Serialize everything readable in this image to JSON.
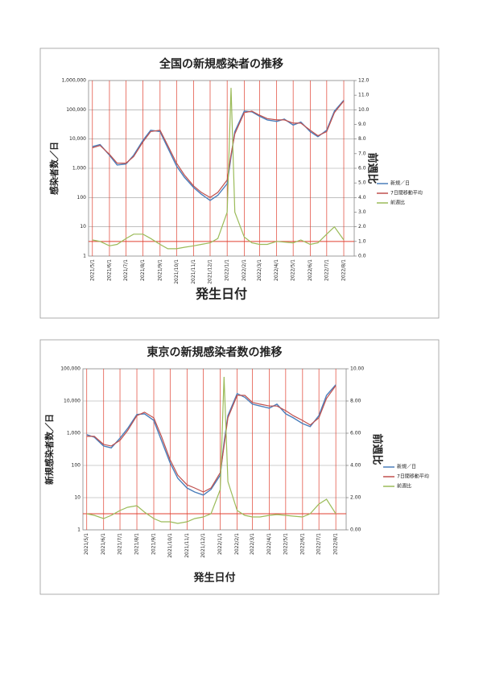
{
  "chart_data": [
    {
      "type": "line",
      "title": "全国の新規感染者の推移",
      "ylabel": "感染者数／日",
      "y2label": "前週比",
      "xlabel": "発生日付",
      "ylog": true,
      "x": [
        "2021/5/1",
        "2021/5/15",
        "2021/6/1",
        "2021/6/15",
        "2021/7/1",
        "2021/7/15",
        "2021/8/1",
        "2021/8/15",
        "2021/9/1",
        "2021/9/15",
        "2021/10/1",
        "2021/10/15",
        "2021/11/1",
        "2021/11/15",
        "2021/12/1",
        "2021/12/15",
        "2022/1/1",
        "2022/1/8",
        "2022/1/15",
        "2022/2/1",
        "2022/2/15",
        "2022/3/1",
        "2022/3/15",
        "2022/4/1",
        "2022/4/15",
        "2022/5/1",
        "2022/5/15",
        "2022/6/1",
        "2022/6/15",
        "2022/7/1",
        "2022/7/15",
        "2022/8/1"
      ],
      "xlim": [
        "2021/4/24",
        "2022/8/20"
      ],
      "xticks": [
        "2021/5/1",
        "2021/6/1",
        "2021/7/1",
        "2021/8/1",
        "2021/9/1",
        "2021/10/1",
        "2021/11/1",
        "2021/12/1",
        "2022/1/1",
        "2022/2/1",
        "2022/3/1",
        "2022/4/1",
        "2022/5/1",
        "2022/6/1",
        "2022/7/1",
        "2022/8/1"
      ],
      "ylim": [
        1,
        1000000
      ],
      "yticks": [
        1,
        10,
        100,
        {
          "value": 1000,
          "label": "1,000"
        },
        {
          "value": 10000,
          "label": "10,000"
        },
        {
          "value": 100000,
          "label": "100,000"
        },
        {
          "value": 1000000,
          "label": "1,000,000"
        }
      ],
      "y2lim": [
        0,
        12
      ],
      "y2ticks": [
        {
          "value": 0,
          "label": "0.0"
        },
        {
          "value": 1,
          "label": "1.0"
        },
        {
          "value": 2,
          "label": "2.0"
        },
        {
          "value": 3,
          "label": "3.0"
        },
        {
          "value": 4,
          "label": "4.0"
        },
        {
          "value": 5,
          "label": "5.0"
        },
        {
          "value": 6,
          "label": "6.0"
        },
        {
          "value": 7,
          "label": "7.0"
        },
        {
          "value": 8,
          "label": "8.0"
        },
        {
          "value": 9,
          "label": "9.0"
        },
        {
          "value": 10,
          "label": "10.0"
        },
        {
          "value": 11,
          "label": "11.0"
        },
        {
          "value": 12,
          "label": "12.0"
        }
      ],
      "y2_ref": 1,
      "series": [
        {
          "name": "新規／日",
          "color": "#4a7ebb",
          "values": [
            5500,
            6500,
            2800,
            1300,
            1400,
            2800,
            9000,
            20000,
            18000,
            5000,
            1200,
            500,
            220,
            130,
            80,
            120,
            300,
            2500,
            18000,
            90000,
            85000,
            60000,
            45000,
            40000,
            48000,
            30000,
            38000,
            18000,
            12000,
            20000,
            90000,
            210000
          ]
        },
        {
          "name": "7日間移動平均",
          "color": "#c0504d",
          "values": [
            5000,
            6000,
            3000,
            1500,
            1500,
            2500,
            8000,
            18000,
            20000,
            6000,
            1500,
            600,
            250,
            150,
            100,
            150,
            400,
            3000,
            15000,
            80000,
            90000,
            65000,
            50000,
            45000,
            45000,
            35000,
            35000,
            20000,
            13000,
            18000,
            80000,
            200000
          ]
        },
        {
          "name": "前週比",
          "color": "#9bbb59",
          "axis": "y2",
          "values": [
            1.1,
            1.0,
            0.7,
            0.8,
            1.2,
            1.5,
            1.5,
            1.2,
            0.8,
            0.5,
            0.5,
            0.6,
            0.7,
            0.8,
            0.9,
            1.2,
            3.0,
            11.5,
            3.0,
            1.3,
            0.9,
            0.8,
            0.8,
            1.0,
            0.95,
            0.9,
            1.1,
            0.8,
            0.9,
            1.5,
            2.0,
            1.1
          ]
        }
      ]
    },
    {
      "type": "line",
      "title": "東京の新規感染者数の推移",
      "ylabel": "新規感染者数／日",
      "y2label": "前週比",
      "xlabel": "発生日付",
      "ylog": true,
      "x": [
        "2021/5/1",
        "2021/5/15",
        "2021/6/1",
        "2021/6/15",
        "2021/7/1",
        "2021/7/15",
        "2021/8/1",
        "2021/8/15",
        "2021/9/1",
        "2021/9/15",
        "2021/10/1",
        "2021/10/15",
        "2021/11/1",
        "2021/11/15",
        "2021/12/1",
        "2021/12/15",
        "2022/1/1",
        "2022/1/8",
        "2022/1/15",
        "2022/2/1",
        "2022/2/15",
        "2022/3/1",
        "2022/3/15",
        "2022/4/1",
        "2022/4/15",
        "2022/5/1",
        "2022/5/15",
        "2022/6/1",
        "2022/6/15",
        "2022/7/1",
        "2022/7/15",
        "2022/8/1"
      ],
      "xlim": [
        "2021/4/24",
        "2022/8/20"
      ],
      "xticks": [
        "2021/5/1",
        "2021/6/1",
        "2021/7/1",
        "2021/8/1",
        "2021/9/1",
        "2021/10/1",
        "2021/11/1",
        "2021/12/1",
        "2022/1/1",
        "2022/2/1",
        "2022/3/1",
        "2022/4/1",
        "2022/5/1",
        "2022/6/1",
        "2022/7/1",
        "2022/8/1"
      ],
      "ylim": [
        1,
        100000
      ],
      "yticks": [
        1,
        10,
        100,
        {
          "value": 1000,
          "label": "1,000"
        },
        {
          "value": 10000,
          "label": "10,000"
        },
        {
          "value": 100000,
          "label": "100,000"
        }
      ],
      "y2lim": [
        0,
        10
      ],
      "y2ticks": [
        {
          "value": 0,
          "label": "0.00"
        },
        {
          "value": 2,
          "label": "2.00"
        },
        {
          "value": 4,
          "label": "4.00"
        },
        {
          "value": 6,
          "label": "6.00"
        },
        {
          "value": 8,
          "label": "8.00"
        },
        {
          "value": 10,
          "label": "10.00"
        }
      ],
      "y2_ref": 1,
      "series": [
        {
          "name": "新規／日",
          "color": "#4a7ebb",
          "values": [
            900,
            750,
            400,
            350,
            700,
            1400,
            3800,
            4000,
            2500,
            600,
            120,
            40,
            20,
            15,
            12,
            18,
            50,
            500,
            3500,
            17000,
            13000,
            8000,
            7000,
            6000,
            8000,
            4000,
            3000,
            2000,
            1600,
            3500,
            15000,
            32000
          ]
        },
        {
          "name": "7日間移動平均",
          "color": "#c0504d",
          "values": [
            800,
            800,
            450,
            400,
            600,
            1200,
            3500,
            4500,
            3000,
            800,
            150,
            50,
            25,
            20,
            15,
            20,
            60,
            400,
            3000,
            15000,
            15000,
            9000,
            8000,
            7000,
            7000,
            5000,
            3500,
            2500,
            1800,
            3000,
            12000,
            30000
          ]
        },
        {
          "name": "前週比",
          "color": "#9bbb59",
          "axis": "y2",
          "values": [
            1.0,
            0.9,
            0.7,
            0.9,
            1.2,
            1.4,
            1.5,
            1.1,
            0.7,
            0.5,
            0.5,
            0.4,
            0.5,
            0.7,
            0.8,
            1.0,
            2.5,
            9.5,
            3.0,
            1.2,
            0.9,
            0.8,
            0.8,
            0.9,
            0.95,
            0.9,
            0.85,
            0.8,
            1.0,
            1.6,
            1.9,
            1.0
          ]
        }
      ]
    }
  ]
}
